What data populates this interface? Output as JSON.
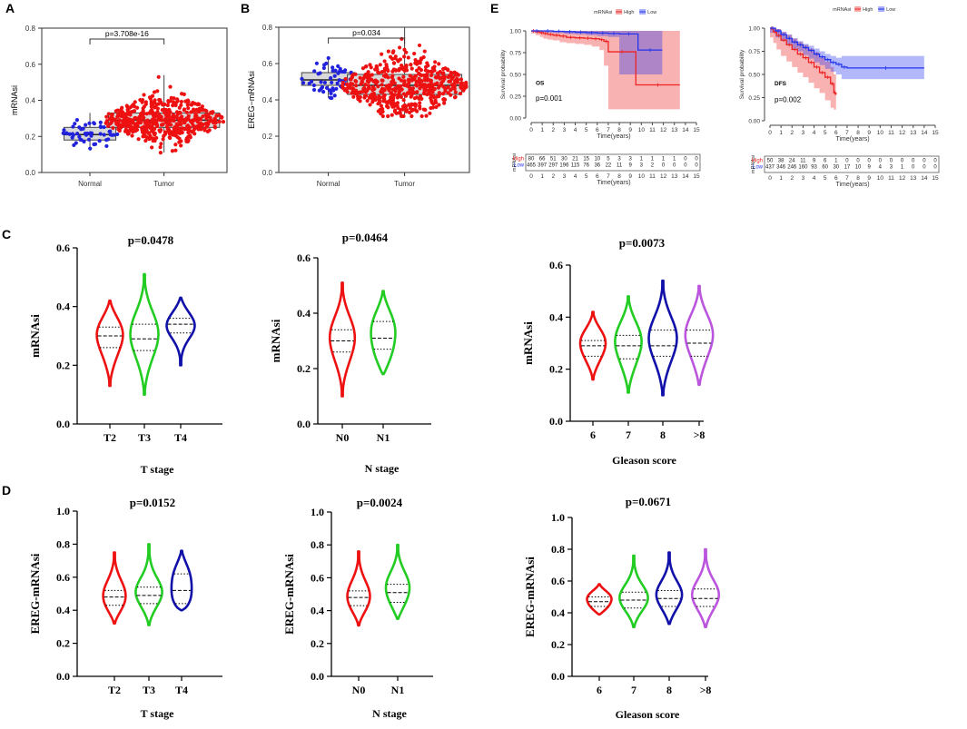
{
  "panels": {
    "A": "A",
    "B": "B",
    "C": "C",
    "D": "D",
    "E": "E"
  },
  "colors": {
    "normal": "#2222dd",
    "tumor": "#ee1111",
    "km_high": "#ee2222",
    "km_low": "#2233ee",
    "violin": [
      "#ee1111",
      "#22cc22",
      "#1111aa",
      "#bb55dd"
    ]
  },
  "chart_data": [
    {
      "id": "A",
      "type": "scatter",
      "title": "",
      "ylabel": "mRNAsi",
      "xlabel": "",
      "categories": [
        "Normal",
        "Tumor"
      ],
      "ylim": [
        0,
        0.8
      ],
      "yticks": [
        "0.0",
        "0.2",
        "0.4",
        "0.6",
        "0.8"
      ],
      "annotation": "p=3.708e-16",
      "box": [
        {
          "name": "Normal",
          "q1": 0.18,
          "median": 0.21,
          "q3": 0.25,
          "min": 0.13,
          "max": 0.33
        },
        {
          "name": "Tumor",
          "q1": 0.25,
          "median": 0.29,
          "q3": 0.33,
          "min": 0.11,
          "max": 0.54
        }
      ],
      "points": [
        {
          "name": "Normal",
          "n": 52,
          "center": 0.21,
          "spread": 0.045,
          "min": 0.13,
          "max": 0.33
        },
        {
          "name": "Tumor",
          "n": 500,
          "center": 0.29,
          "spread": 0.06,
          "min": 0.11,
          "max": 0.54
        }
      ]
    },
    {
      "id": "B",
      "type": "scatter",
      "title": "",
      "ylabel": "EREG−mRNAsi",
      "xlabel": "",
      "categories": [
        "Normal",
        "Tumor"
      ],
      "ylim": [
        0,
        0.8
      ],
      "yticks": [
        "0.0",
        "0.2",
        "0.4",
        "0.6",
        "0.8"
      ],
      "annotation": "p=0.034",
      "box": [
        {
          "name": "Normal",
          "q1": 0.48,
          "median": 0.51,
          "q3": 0.55,
          "min": 0.41,
          "max": 0.63
        },
        {
          "name": "Tumor",
          "q1": 0.43,
          "median": 0.48,
          "q3": 0.54,
          "min": 0.31,
          "max": 0.8
        }
      ],
      "points": [
        {
          "name": "Normal",
          "n": 52,
          "center": 0.51,
          "spread": 0.045,
          "min": 0.41,
          "max": 0.63
        },
        {
          "name": "Tumor",
          "n": 500,
          "center": 0.48,
          "spread": 0.08,
          "min": 0.31,
          "max": 0.8
        }
      ]
    },
    {
      "id": "E-OS",
      "type": "line",
      "title": "",
      "legend_title": "mRNAsi",
      "legend": [
        "High",
        "Low"
      ],
      "ylabel": "Survival probability",
      "xlabel": "Time(years)",
      "xlim": [
        0,
        15
      ],
      "ylim": [
        0,
        1
      ],
      "yticks": [
        "0.00",
        "0.25",
        "0.50",
        "0.75",
        "1.00"
      ],
      "xticks": [
        "0",
        "1",
        "2",
        "3",
        "4",
        "5",
        "6",
        "7",
        "8",
        "9",
        "10",
        "11",
        "12",
        "13",
        "14",
        "15"
      ],
      "label": "OS",
      "pvalue": "p=0.001",
      "series": [
        {
          "name": "High",
          "x": [
            0,
            0.4,
            0.8,
            1.1,
            1.5,
            2,
            2.6,
            3.2,
            4,
            4.8,
            5.5,
            6.2,
            6.6,
            7.0,
            9.5,
            13.5
          ],
          "y": [
            1.0,
            0.99,
            0.98,
            0.97,
            0.96,
            0.95,
            0.94,
            0.925,
            0.92,
            0.915,
            0.91,
            0.9,
            0.88,
            0.76,
            0.38,
            0.38
          ],
          "lower": [
            1.0,
            0.97,
            0.95,
            0.93,
            0.91,
            0.9,
            0.89,
            0.87,
            0.86,
            0.85,
            0.84,
            0.82,
            0.78,
            0.6,
            0.1,
            0.1
          ],
          "upper": [
            1.0,
            1.0,
            1.0,
            1.0,
            1.0,
            1.0,
            1.0,
            1.0,
            1.0,
            1.0,
            1.0,
            1.0,
            1.0,
            1.0,
            1.0,
            1.0
          ]
        },
        {
          "name": "Low",
          "x": [
            0,
            1,
            2,
            3,
            4,
            5,
            6,
            7,
            8,
            9.7,
            11.9
          ],
          "y": [
            1.0,
            1.0,
            0.995,
            0.99,
            0.985,
            0.98,
            0.975,
            0.97,
            0.965,
            0.78,
            0.78
          ],
          "lower": [
            1.0,
            0.99,
            0.98,
            0.975,
            0.965,
            0.96,
            0.95,
            0.94,
            0.93,
            0.5,
            0.5
          ],
          "upper": [
            1.0,
            1.0,
            1.0,
            1.0,
            1.0,
            1.0,
            1.0,
            1.0,
            1.0,
            1.0,
            1.0
          ]
        }
      ],
      "risk_table": {
        "title": "mRNAsi",
        "rows": [
          {
            "name": "High",
            "values": [
              "80",
              "66",
              "51",
              "30",
              "21",
              "15",
              "10",
              "5",
              "3",
              "3",
              "1",
              "1",
              "1",
              "1",
              "0",
              "0"
            ]
          },
          {
            "name": "Low",
            "values": [
              "465",
              "397",
              "297",
              "196",
              "115",
              "76",
              "36",
              "22",
              "11",
              "9",
              "3",
              "2",
              "0",
              "0",
              "0",
              "0"
            ]
          }
        ]
      }
    },
    {
      "id": "E-DFS",
      "type": "line",
      "title": "",
      "legend_title": "mRNAsi",
      "legend": [
        "High",
        "Low"
      ],
      "ylabel": "Survival probability",
      "xlabel": "Time(years)",
      "xlim": [
        0,
        15
      ],
      "ylim": [
        0,
        1
      ],
      "yticks": [
        "0.00",
        "0.25",
        "0.50",
        "0.75",
        "1.00"
      ],
      "xticks": [
        "0",
        "1",
        "2",
        "3",
        "4",
        "5",
        "6",
        "7",
        "8",
        "9",
        "10",
        "11",
        "12",
        "13",
        "14",
        "15"
      ],
      "label": "DFS",
      "pvalue": "p=0.002",
      "series": [
        {
          "name": "High",
          "x": [
            0,
            0.3,
            0.6,
            1.0,
            1.5,
            2.0,
            2.5,
            3.0,
            3.5,
            4.0,
            4.5,
            5.0,
            5.5,
            5.8,
            6.0
          ],
          "y": [
            1.0,
            0.96,
            0.92,
            0.87,
            0.82,
            0.77,
            0.72,
            0.68,
            0.63,
            0.58,
            0.52,
            0.47,
            0.4,
            0.3,
            0.28
          ],
          "lower": [
            1.0,
            0.9,
            0.84,
            0.77,
            0.7,
            0.64,
            0.58,
            0.52,
            0.47,
            0.41,
            0.35,
            0.3,
            0.22,
            0.14,
            0.12
          ],
          "upper": [
            1.0,
            1.0,
            0.99,
            0.96,
            0.93,
            0.89,
            0.85,
            0.82,
            0.78,
            0.74,
            0.68,
            0.64,
            0.58,
            0.5,
            0.48
          ]
        },
        {
          "name": "Low",
          "x": [
            0,
            0.5,
            1.0,
            1.5,
            2.0,
            2.5,
            3.0,
            3.5,
            4.0,
            4.5,
            5.0,
            5.5,
            6.0,
            6.5,
            7.0,
            14.0
          ],
          "y": [
            1.0,
            0.97,
            0.93,
            0.89,
            0.85,
            0.82,
            0.79,
            0.76,
            0.72,
            0.69,
            0.66,
            0.63,
            0.61,
            0.58,
            0.57,
            0.57
          ],
          "lower": [
            1.0,
            0.95,
            0.9,
            0.86,
            0.82,
            0.78,
            0.75,
            0.71,
            0.67,
            0.63,
            0.6,
            0.56,
            0.53,
            0.5,
            0.45,
            0.45
          ],
          "upper": [
            1.0,
            0.99,
            0.96,
            0.93,
            0.89,
            0.86,
            0.83,
            0.81,
            0.78,
            0.75,
            0.72,
            0.7,
            0.68,
            0.7,
            0.7,
            0.7
          ]
        }
      ],
      "risk_table": {
        "title": "mRNAsi",
        "rows": [
          {
            "name": "High",
            "values": [
              "50",
              "38",
              "24",
              "11",
              "9",
              "6",
              "1",
              "0",
              "0",
              "0",
              "0",
              "0",
              "0",
              "0",
              "0",
              "0"
            ]
          },
          {
            "name": "Low",
            "values": [
              "437",
              "346",
              "246",
              "160",
              "93",
              "60",
              "30",
              "17",
              "10",
              "9",
              "4",
              "3",
              "1",
              "0",
              "0",
              "0"
            ]
          }
        ]
      }
    },
    {
      "id": "C1",
      "type": "violin",
      "title": "p=0.0478",
      "ylabel": "mRNAsi",
      "xlabel": "T stage",
      "categories": [
        "T2",
        "T3",
        "T4"
      ],
      "ylim": [
        0,
        0.6
      ],
      "yticks": [
        "0.0",
        "0.2",
        "0.4",
        "0.6"
      ],
      "groups": [
        {
          "name": "T2",
          "min": 0.13,
          "max": 0.42,
          "q1": 0.26,
          "median": 0.3,
          "q3": 0.33,
          "mode": 0.3
        },
        {
          "name": "T3",
          "min": 0.1,
          "max": 0.51,
          "q1": 0.25,
          "median": 0.29,
          "q3": 0.34,
          "mode": 0.29
        },
        {
          "name": "T4",
          "min": 0.2,
          "max": 0.43,
          "q1": 0.31,
          "median": 0.34,
          "q3": 0.36,
          "mode": 0.35
        }
      ]
    },
    {
      "id": "C2",
      "type": "violin",
      "title": "p=0.0464",
      "ylabel": "mRNAsi",
      "xlabel": "N stage",
      "categories": [
        "N0",
        "N1"
      ],
      "ylim": [
        0,
        0.6
      ],
      "yticks": [
        "0.0",
        "0.2",
        "0.4",
        "0.6"
      ],
      "groups": [
        {
          "name": "N0",
          "min": 0.1,
          "max": 0.51,
          "q1": 0.26,
          "median": 0.3,
          "q3": 0.34,
          "mode": 0.3
        },
        {
          "name": "N1",
          "min": 0.18,
          "max": 0.48,
          "q1": 0.27,
          "median": 0.31,
          "q3": 0.37,
          "mode": 0.3
        }
      ]
    },
    {
      "id": "C3",
      "type": "violin",
      "title": "p=0.0073",
      "ylabel": "mRNAsi",
      "xlabel": "Gleason score",
      "categories": [
        "6",
        "7",
        "8",
        ">8"
      ],
      "ylim": [
        0,
        0.6
      ],
      "yticks": [
        "0.0",
        "0.2",
        "0.4",
        "0.6"
      ],
      "groups": [
        {
          "name": "6",
          "min": 0.16,
          "max": 0.42,
          "q1": 0.25,
          "median": 0.29,
          "q3": 0.31,
          "mode": 0.29
        },
        {
          "name": "7",
          "min": 0.11,
          "max": 0.48,
          "q1": 0.24,
          "median": 0.29,
          "q3": 0.33,
          "mode": 0.29
        },
        {
          "name": "8",
          "min": 0.1,
          "max": 0.54,
          "q1": 0.25,
          "median": 0.29,
          "q3": 0.35,
          "mode": 0.3
        },
        {
          "name": ">8",
          "min": 0.14,
          "max": 0.52,
          "q1": 0.25,
          "median": 0.3,
          "q3": 0.35,
          "mode": 0.31
        }
      ]
    },
    {
      "id": "D1",
      "type": "violin",
      "title": "p=0.0152",
      "ylabel": "EREG-mRNAsi",
      "xlabel": "T stage",
      "categories": [
        "T2",
        "T3",
        "T4"
      ],
      "ylim": [
        0,
        1.0
      ],
      "yticks": [
        "0.0",
        "0.2",
        "0.4",
        "0.6",
        "0.8",
        "1.0"
      ],
      "groups": [
        {
          "name": "T2",
          "min": 0.32,
          "max": 0.75,
          "q1": 0.43,
          "median": 0.48,
          "q3": 0.52,
          "mode": 0.47
        },
        {
          "name": "T3",
          "min": 0.31,
          "max": 0.8,
          "q1": 0.44,
          "median": 0.49,
          "q3": 0.54,
          "mode": 0.48
        },
        {
          "name": "T4",
          "min": 0.4,
          "max": 0.76,
          "q1": 0.44,
          "median": 0.52,
          "q3": 0.62,
          "mode": 0.45
        }
      ]
    },
    {
      "id": "D2",
      "type": "violin",
      "title": "p=0.0024",
      "ylabel": "EREG-mRNAsi",
      "xlabel": "N stage",
      "categories": [
        "N0",
        "N1"
      ],
      "ylim": [
        0,
        1.0
      ],
      "yticks": [
        "0.0",
        "0.2",
        "0.4",
        "0.6",
        "0.8",
        "1.0"
      ],
      "groups": [
        {
          "name": "N0",
          "min": 0.31,
          "max": 0.76,
          "q1": 0.43,
          "median": 0.48,
          "q3": 0.52,
          "mode": 0.47
        },
        {
          "name": "N1",
          "min": 0.35,
          "max": 0.8,
          "q1": 0.45,
          "median": 0.51,
          "q3": 0.56,
          "mode": 0.5
        }
      ]
    },
    {
      "id": "D3",
      "type": "violin",
      "title": "p=0.0671",
      "ylabel": "EREG-mRNAsi",
      "xlabel": "Gleason score",
      "categories": [
        "6",
        "7",
        "8",
        ">8"
      ],
      "ylim": [
        0,
        1.0
      ],
      "yticks": [
        "0.0",
        "0.2",
        "0.4",
        "0.6",
        "0.8",
        "1.0"
      ],
      "groups": [
        {
          "name": "6",
          "min": 0.39,
          "max": 0.58,
          "q1": 0.44,
          "median": 0.47,
          "q3": 0.5,
          "mode": 0.47
        },
        {
          "name": "7",
          "min": 0.31,
          "max": 0.76,
          "q1": 0.43,
          "median": 0.48,
          "q3": 0.53,
          "mode": 0.47
        },
        {
          "name": "8",
          "min": 0.33,
          "max": 0.78,
          "q1": 0.44,
          "median": 0.49,
          "q3": 0.54,
          "mode": 0.48
        },
        {
          "name": ">8",
          "min": 0.31,
          "max": 0.8,
          "q1": 0.44,
          "median": 0.49,
          "q3": 0.55,
          "mode": 0.48
        }
      ]
    }
  ]
}
